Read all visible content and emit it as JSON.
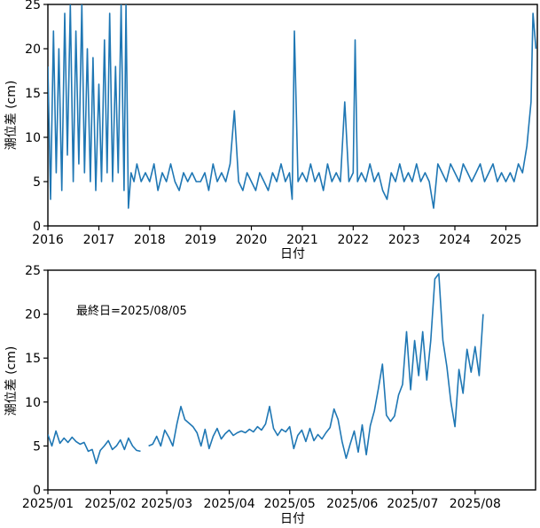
{
  "chart_data": [
    {
      "type": "line",
      "xlabel": "日付",
      "ylabel": "潮位差 (cm)",
      "ylim": [
        0,
        25
      ],
      "xlim": [
        "2016-01-01",
        "2025-08-15"
      ],
      "yticks": [
        0,
        5,
        10,
        15,
        20,
        25
      ],
      "xticks": [
        "2016",
        "2017",
        "2018",
        "2019",
        "2020",
        "2021",
        "2022",
        "2023",
        "2024",
        "2025"
      ],
      "grid": false,
      "color": "#1f77b4",
      "series": [
        {
          "x": [
            "2016-01-01",
            "2016-01-20",
            "2016-02-10",
            "2016-03-01",
            "2016-03-20",
            "2016-04-10",
            "2016-05-01",
            "2016-05-20",
            "2016-06-10",
            "2016-07-01",
            "2016-07-20",
            "2016-08-10",
            "2016-09-01",
            "2016-09-20",
            "2016-10-10",
            "2016-11-01",
            "2016-11-20",
            "2016-12-10",
            "2017-01-01",
            "2017-01-20",
            "2017-02-10",
            "2017-03-01",
            "2017-03-20",
            "2017-04-10",
            "2017-05-01",
            "2017-05-20",
            "2017-06-10",
            "2017-07-01",
            "2017-07-15",
            "2017-08-01",
            "2017-08-20",
            "2017-09-10",
            "2017-10-01",
            "2017-11-01",
            "2017-12-01",
            "2018-01-01",
            "2018-02-01",
            "2018-03-01",
            "2018-04-01",
            "2018-05-01",
            "2018-06-01",
            "2018-07-01",
            "2018-08-01",
            "2018-09-01",
            "2018-10-01",
            "2018-11-01",
            "2018-12-01",
            "2019-01-01",
            "2019-02-01",
            "2019-03-01",
            "2019-04-01",
            "2019-05-01",
            "2019-06-01",
            "2019-07-01",
            "2019-08-01",
            "2019-09-01",
            "2019-10-01",
            "2019-11-01",
            "2019-12-01",
            "2020-01-01",
            "2020-02-01",
            "2020-03-01",
            "2020-04-01",
            "2020-05-01",
            "2020-06-01",
            "2020-07-01",
            "2020-08-01",
            "2020-09-01",
            "2020-10-01",
            "2020-10-20",
            "2020-11-05",
            "2020-12-01",
            "2021-01-01",
            "2021-02-01",
            "2021-03-01",
            "2021-04-01",
            "2021-05-01",
            "2021-06-01",
            "2021-07-01",
            "2021-08-01",
            "2021-09-01",
            "2021-10-01",
            "2021-11-01",
            "2021-12-01",
            "2022-01-01",
            "2022-01-15",
            "2022-02-01",
            "2022-03-01",
            "2022-04-01",
            "2022-05-01",
            "2022-06-01",
            "2022-07-01",
            "2022-08-01",
            "2022-09-01",
            "2022-10-01",
            "2022-11-01",
            "2022-12-01",
            "2023-01-01",
            "2023-02-01",
            "2023-03-01",
            "2023-04-01",
            "2023-05-01",
            "2023-06-01",
            "2023-07-01",
            "2023-08-01",
            "2023-09-01",
            "2023-10-01",
            "2023-11-01",
            "2023-12-01",
            "2024-01-01",
            "2024-02-01",
            "2024-03-01",
            "2024-04-01",
            "2024-05-01",
            "2024-06-01",
            "2024-07-01",
            "2024-08-01",
            "2024-09-01",
            "2024-10-01",
            "2024-11-01",
            "2024-12-01",
            "2025-01-01",
            "2025-02-01",
            "2025-03-01",
            "2025-04-01",
            "2025-05-01",
            "2025-06-01",
            "2025-07-01",
            "2025-07-15",
            "2025-08-05"
          ],
          "y": [
            18,
            3,
            22,
            6,
            20,
            4,
            24,
            8,
            25,
            5,
            22,
            7,
            25,
            6,
            20,
            5,
            19,
            4,
            16,
            5,
            21,
            6,
            24,
            5,
            18,
            6,
            25,
            4,
            25,
            2,
            6,
            5,
            7,
            5,
            6,
            5,
            7,
            4,
            6,
            5,
            7,
            5,
            4,
            6,
            5,
            6,
            5,
            5,
            6,
            4,
            7,
            5,
            6,
            5,
            7,
            13,
            5,
            4,
            6,
            5,
            4,
            6,
            5,
            4,
            6,
            5,
            7,
            5,
            6,
            3,
            22,
            5,
            6,
            5,
            7,
            5,
            6,
            4,
            7,
            5,
            6,
            5,
            14,
            5,
            6,
            21,
            5,
            6,
            5,
            7,
            5,
            6,
            4,
            3,
            6,
            5,
            7,
            5,
            6,
            5,
            7,
            5,
            6,
            5,
            2,
            7,
            6,
            5,
            7,
            6,
            5,
            7,
            6,
            5,
            6,
            7,
            5,
            6,
            7,
            5,
            6,
            5,
            6,
            5,
            7,
            6,
            9,
            14,
            24,
            20
          ]
        }
      ]
    },
    {
      "type": "line",
      "xlabel": "日付",
      "ylabel": "潮位差 (cm)",
      "annotation": "最終日=2025/08/05",
      "ylim": [
        0,
        25
      ],
      "xlim": [
        "2025-01-01",
        "2025-08-31"
      ],
      "yticks": [
        0,
        5,
        10,
        15,
        20,
        25
      ],
      "xticks": [
        "2025/01",
        "2025/02",
        "2025/03",
        "2025/04",
        "2025/05",
        "2025/06",
        "2025/07",
        "2025/08"
      ],
      "grid": false,
      "color": "#1f77b4",
      "series": [
        {
          "segments": [
            {
              "x": [
                "2025-01-01",
                "2025-01-03",
                "2025-01-05",
                "2025-01-07",
                "2025-01-09",
                "2025-01-11",
                "2025-01-13",
                "2025-01-15",
                "2025-01-17",
                "2025-01-19",
                "2025-01-21",
                "2025-01-23",
                "2025-01-25",
                "2025-01-27",
                "2025-01-29",
                "2025-01-31",
                "2025-02-02",
                "2025-02-04",
                "2025-02-06",
                "2025-02-08",
                "2025-02-10",
                "2025-02-12",
                "2025-02-14",
                "2025-02-16"
              ],
              "y": [
                6.3,
                5.0,
                6.7,
                5.3,
                5.9,
                5.4,
                6.0,
                5.5,
                5.2,
                5.4,
                4.4,
                4.6,
                3.0,
                4.5,
                5.0,
                5.6,
                4.6,
                5.0,
                5.7,
                4.6,
                5.9,
                5.0,
                4.5,
                4.4
              ]
            },
            {
              "x": [
                "2025-02-20",
                "2025-02-22",
                "2025-02-24",
                "2025-02-26",
                "2025-02-28",
                "2025-03-02",
                "2025-03-04",
                "2025-03-06",
                "2025-03-08",
                "2025-03-10",
                "2025-03-12",
                "2025-03-14",
                "2025-03-16",
                "2025-03-18",
                "2025-03-20",
                "2025-03-22",
                "2025-03-24",
                "2025-03-26",
                "2025-03-28",
                "2025-03-30",
                "2025-04-01",
                "2025-04-03",
                "2025-04-05",
                "2025-04-07",
                "2025-04-09",
                "2025-04-11",
                "2025-04-13",
                "2025-04-15",
                "2025-04-17",
                "2025-04-19",
                "2025-04-21",
                "2025-04-23",
                "2025-04-25",
                "2025-04-27",
                "2025-04-29",
                "2025-05-01",
                "2025-05-03",
                "2025-05-05",
                "2025-05-07",
                "2025-05-09",
                "2025-05-11",
                "2025-05-13",
                "2025-05-15",
                "2025-05-17",
                "2025-05-19",
                "2025-05-21",
                "2025-05-23",
                "2025-05-25",
                "2025-05-27",
                "2025-05-29",
                "2025-05-31",
                "2025-06-02",
                "2025-06-04",
                "2025-06-06",
                "2025-06-08",
                "2025-06-10",
                "2025-06-12",
                "2025-06-14",
                "2025-06-16",
                "2025-06-18",
                "2025-06-20",
                "2025-06-22",
                "2025-06-24",
                "2025-06-26",
                "2025-06-28",
                "2025-06-30",
                "2025-07-02",
                "2025-07-04",
                "2025-07-06",
                "2025-07-08",
                "2025-07-10",
                "2025-07-12",
                "2025-07-14",
                "2025-07-16",
                "2025-07-18",
                "2025-07-20",
                "2025-07-22",
                "2025-07-24",
                "2025-07-26",
                "2025-07-28",
                "2025-07-30",
                "2025-08-01",
                "2025-08-03",
                "2025-08-05"
              ],
              "y": [
                5.0,
                5.2,
                6.1,
                5.0,
                6.8,
                6.0,
                5.0,
                7.5,
                9.5,
                8.0,
                7.6,
                7.2,
                6.5,
                5.0,
                6.9,
                4.7,
                6.1,
                7.0,
                5.8,
                6.4,
                6.8,
                6.2,
                6.5,
                6.7,
                6.5,
                6.9,
                6.6,
                7.2,
                6.8,
                7.5,
                9.5,
                7.0,
                6.2,
                6.9,
                6.6,
                7.2,
                4.7,
                6.2,
                6.8,
                5.5,
                7.0,
                5.6,
                6.3,
                5.8,
                6.5,
                7.1,
                9.2,
                8.0,
                5.5,
                3.6,
                5.2,
                6.7,
                4.3,
                7.4,
                4.0,
                7.3,
                9.0,
                11.5,
                14.3,
                8.5,
                7.8,
                8.4,
                10.8,
                12.0,
                18.0,
                11.4,
                17.0,
                13.0,
                18.0,
                12.5,
                17.0,
                24.0,
                24.6,
                17.0,
                14.0,
                10.0,
                7.2,
                13.7,
                11.0,
                16.0,
                13.4,
                16.3,
                13.0,
                20.0
              ]
            }
          ]
        }
      ]
    }
  ]
}
